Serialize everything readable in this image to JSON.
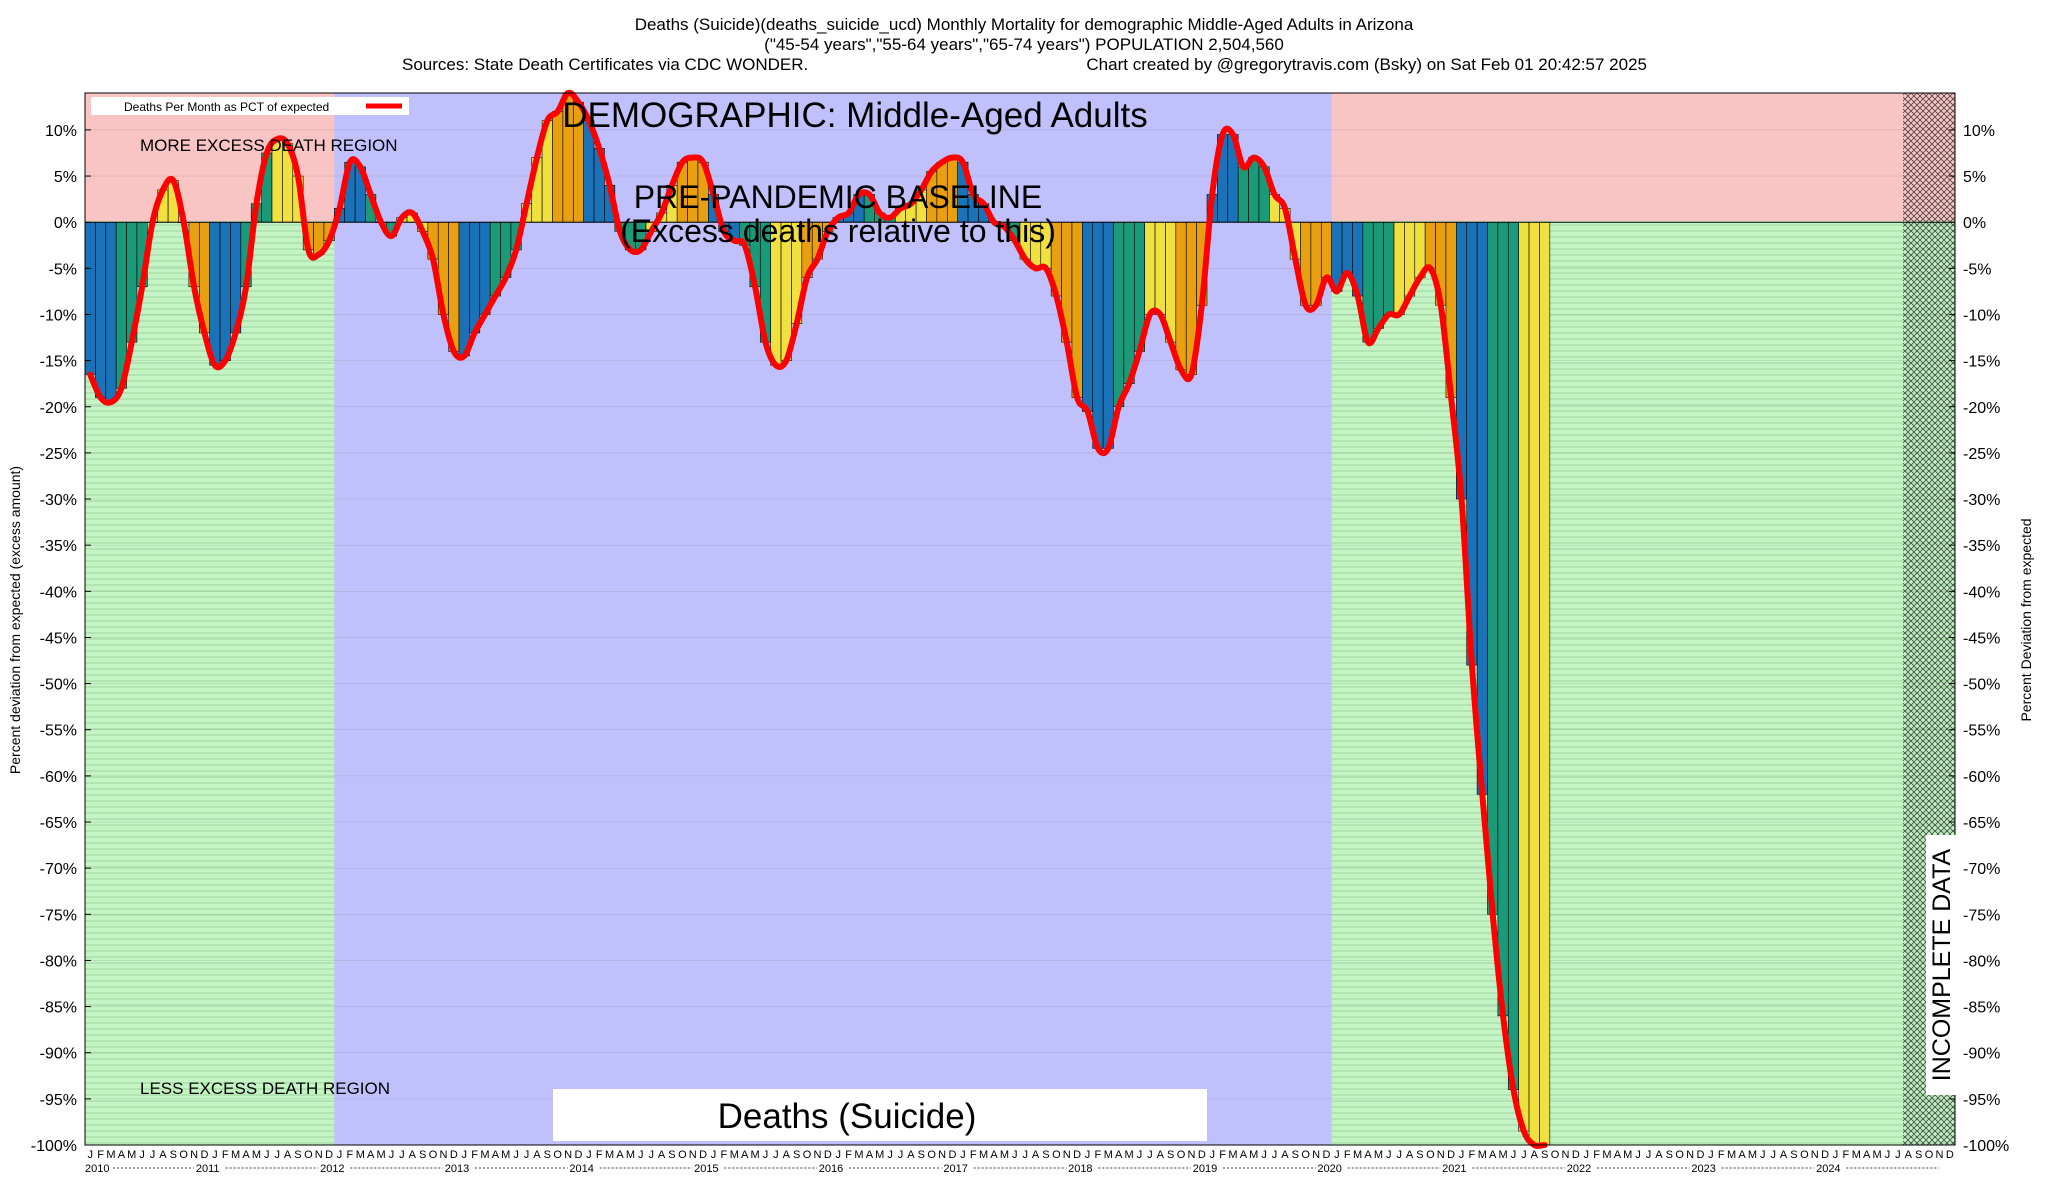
{
  "header": {
    "line1": "Deaths (Suicide)(deaths_suicide_ucd) Monthly Mortality for demographic Middle-Aged Adults in Arizona",
    "line2": "(\"45-54 years\",\"55-64 years\",\"65-74 years\") POPULATION 2,504,560",
    "line3_left": "Sources: State Death Certificates via CDC WONDER.",
    "line3_right": "Chart created by @gregorytravis.com (Bsky) on Sat Feb 01 20:42:57 2025"
  },
  "annotations": {
    "demographic": "DEMOGRAPHIC: Middle-Aged Adults",
    "baseline_line1": "PRE-PANDEMIC BASELINE",
    "baseline_line2": "(Excess deaths relative to this)",
    "more_excess": "MORE EXCESS DEATH REGION",
    "less_excess": "LESS EXCESS DEATH REGION",
    "incomplete": "INCOMPLETE DATA",
    "bottom_label": "Deaths (Suicide)"
  },
  "legend": {
    "label": "Deaths Per Month as PCT of expected",
    "color": "#ff0000"
  },
  "colors": {
    "more_region": "#f9c4c4",
    "less_region": "#c4f4c4",
    "baseline_region": "#c0c0fc",
    "bar_palette": [
      "#1a73b8",
      "#1a9a78",
      "#f0e040",
      "#e8a010"
    ],
    "line": "#ff0000"
  },
  "chart_data": {
    "type": "bar",
    "title": "Deaths (Suicide)",
    "ylabel_left": "Percent deviation from expected (excess amount)",
    "ylabel_right": "Percent Deviation from expected",
    "ylim": [
      -100,
      14
    ],
    "yticks": [
      "10%",
      "5%",
      "0%",
      "-5%",
      "-10%",
      "-15%",
      "-20%",
      "-25%",
      "-30%",
      "-35%",
      "-40%",
      "-45%",
      "-50%",
      "-55%",
      "-60%",
      "-65%",
      "-70%",
      "-75%",
      "-80%",
      "-85%",
      "-90%",
      "-95%",
      "-100%"
    ],
    "month_letters": [
      "J",
      "F",
      "M",
      "A",
      "M",
      "J",
      "J",
      "A",
      "S",
      "O",
      "N",
      "D"
    ],
    "years": [
      "2010",
      "2011",
      "2012",
      "2013",
      "2014",
      "2015",
      "2016",
      "2017",
      "2018",
      "2019",
      "2020",
      "2021",
      "2022",
      "2023",
      "2024"
    ],
    "baseline_years": [
      "2012",
      "2013",
      "2014",
      "2015",
      "2016",
      "2017",
      "2018",
      "2019"
    ],
    "incomplete_from": "2024-08",
    "grid": true,
    "legend_position": "top-left",
    "series": [
      {
        "name": "Deaths Per Month as PCT of expected",
        "values": [
          -16.5,
          -19,
          -19.5,
          -18,
          -13,
          -7,
          0,
          3.5,
          4.5,
          0,
          -7,
          -12,
          -15.5,
          -15,
          -12,
          -7,
          2,
          7.5,
          9,
          8.5,
          5,
          -3,
          -3.5,
          -2,
          1.5,
          6.5,
          6,
          3,
          0,
          -1.5,
          0.5,
          1,
          -1,
          -4,
          -10,
          -14,
          -14.5,
          -12,
          -10,
          -8,
          -6,
          -3,
          2,
          7,
          11,
          12,
          14,
          13,
          11,
          8,
          4,
          -1,
          -3,
          -3,
          -1,
          1,
          4,
          6.5,
          7,
          6.5,
          3,
          -1,
          -2,
          -2.5,
          -7,
          -13,
          -15.5,
          -15,
          -11,
          -6,
          -4,
          -1,
          0.5,
          1,
          3,
          3,
          1,
          0.5,
          1.5,
          2,
          3.5,
          5.5,
          6.5,
          7,
          6.5,
          3,
          2,
          0,
          -0.5,
          -2,
          -4,
          -5,
          -5,
          -8,
          -13,
          -19,
          -20.5,
          -24.5,
          -24.5,
          -20,
          -17.5,
          -14,
          -10,
          -10,
          -13,
          -16,
          -16.5,
          -9,
          3,
          9.5,
          9.5,
          6,
          7,
          6,
          3,
          1.5,
          -4,
          -9,
          -9,
          -6,
          -7.5,
          -5.5,
          -8,
          -13,
          -11.5,
          -10,
          -10,
          -8,
          -6,
          -5,
          -9,
          -19,
          -30,
          -48,
          -62,
          -75,
          -86,
          -94,
          -98.5,
          -100,
          -100
        ]
      }
    ]
  }
}
